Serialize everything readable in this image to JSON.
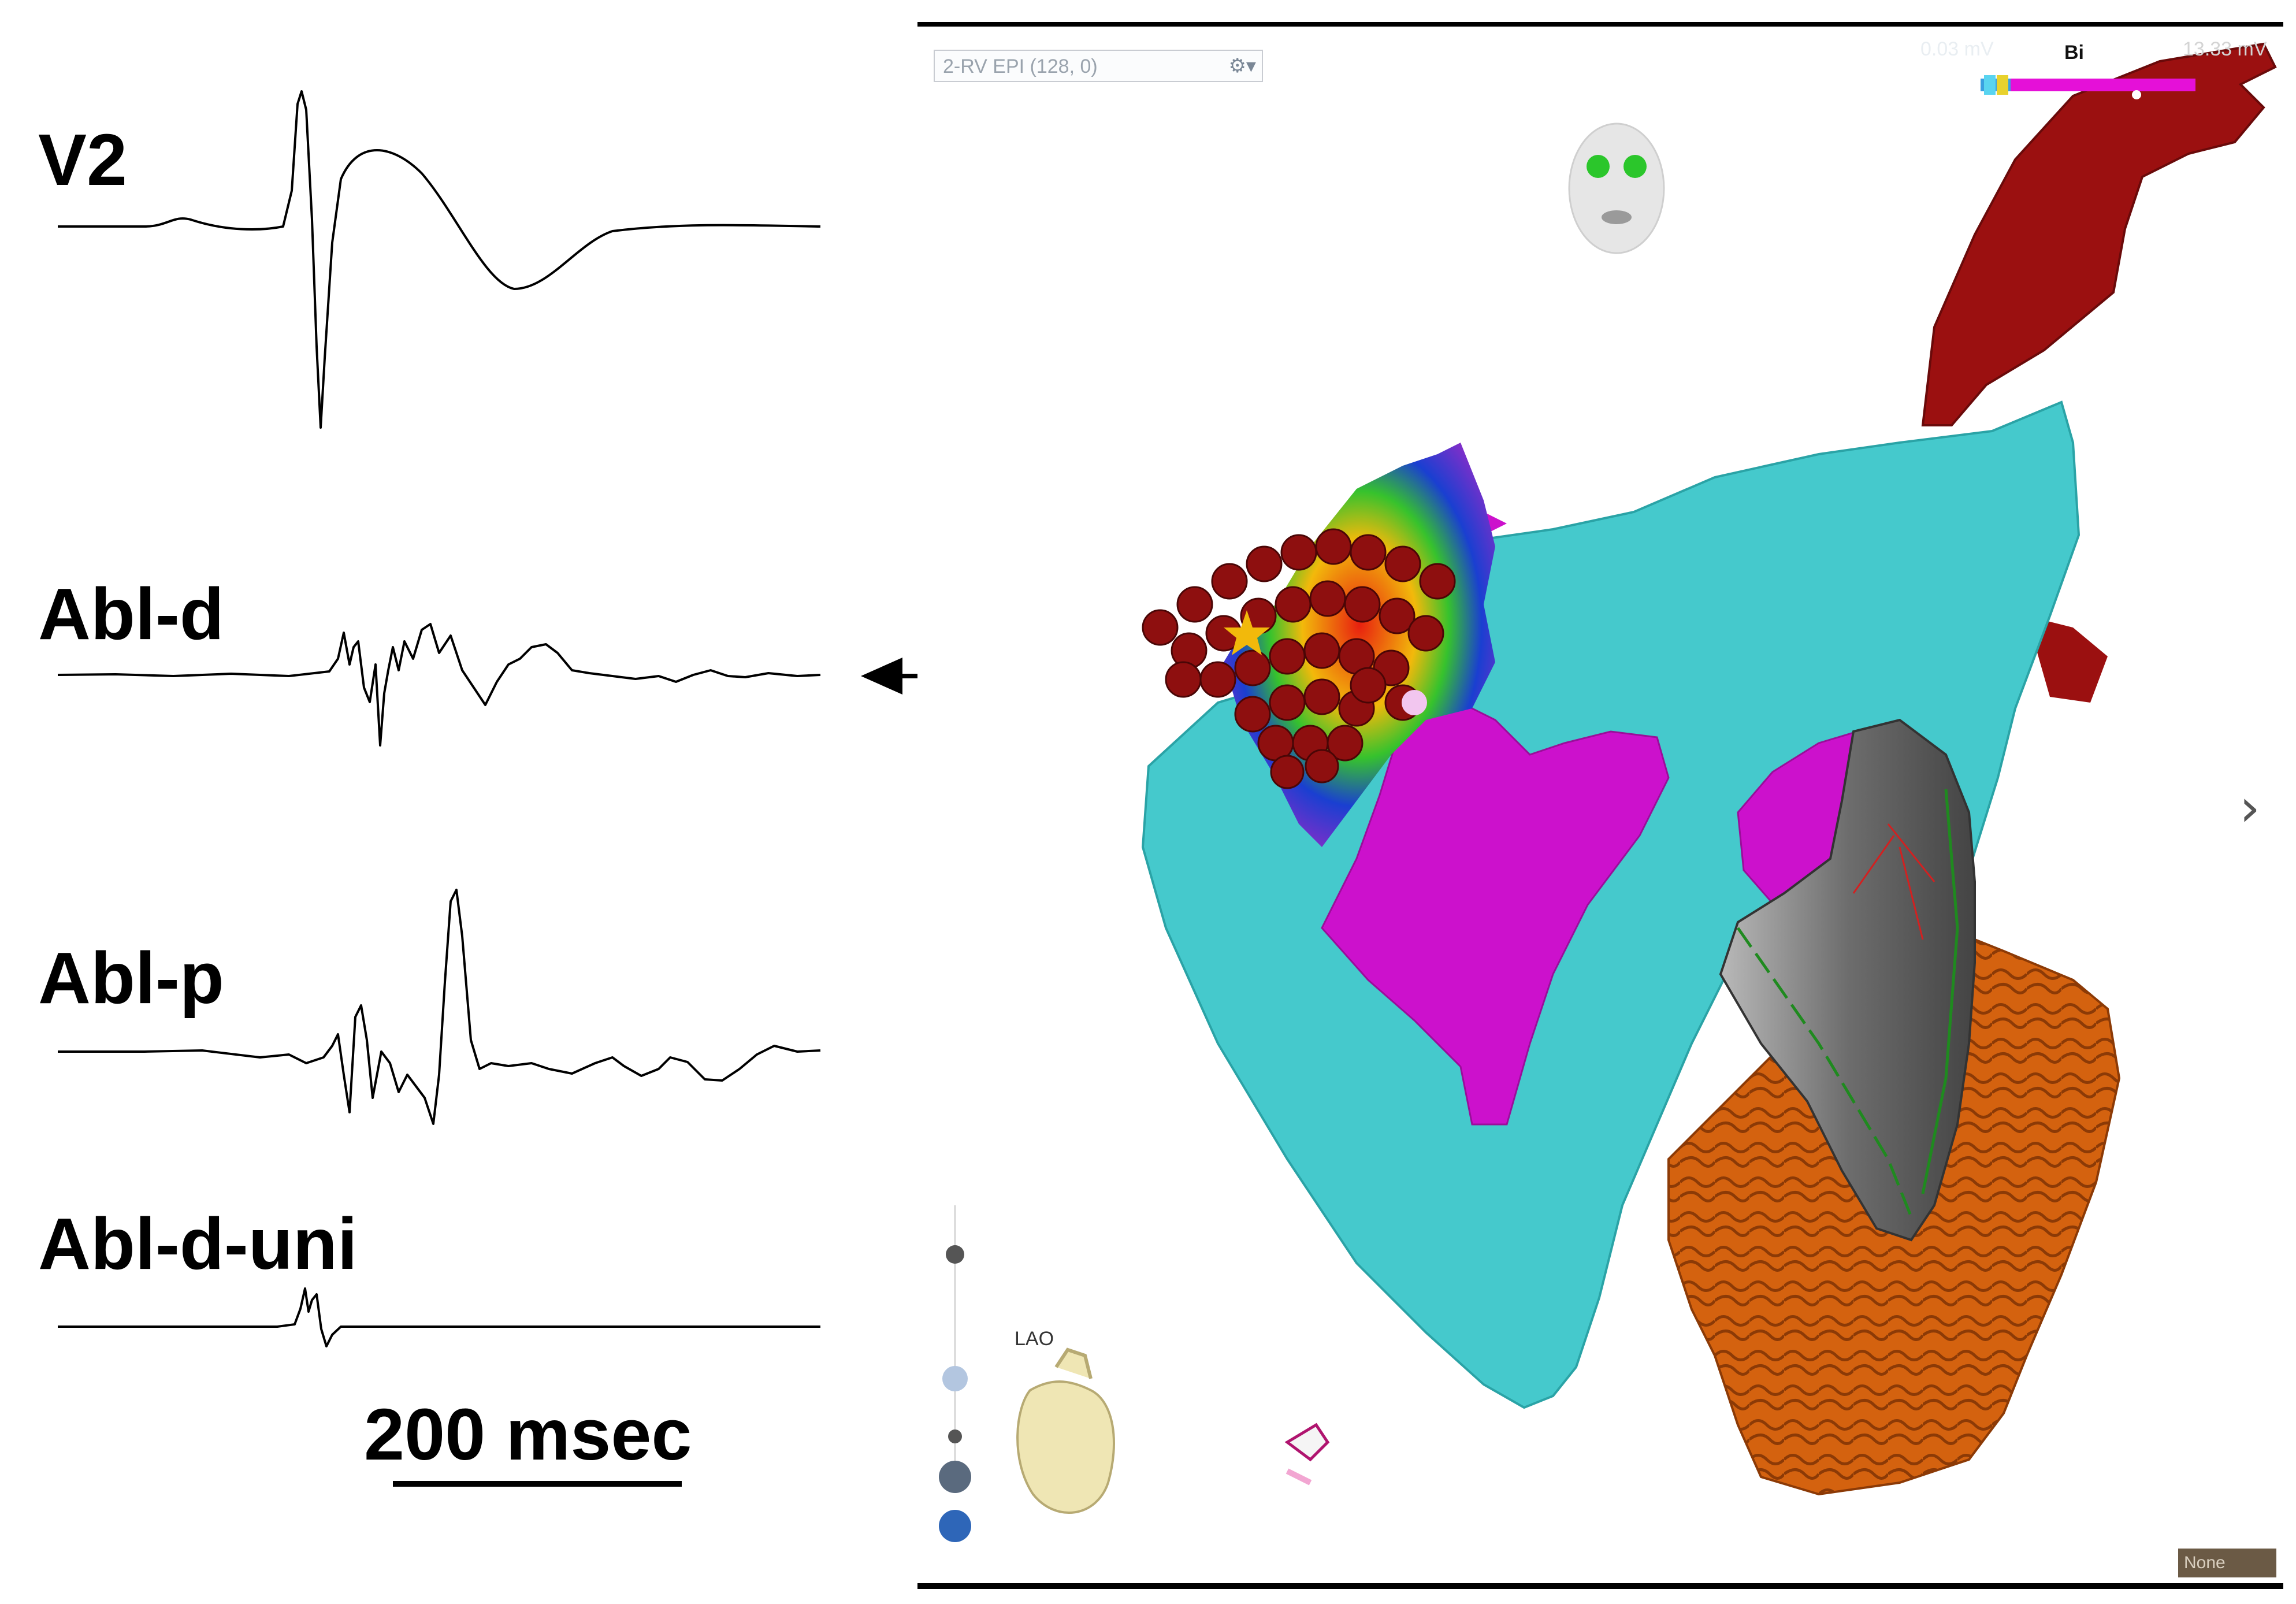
{
  "traces": {
    "v2": "V2",
    "abl_d": "Abl-d",
    "abl_p": "Abl-p",
    "abl_d_uni": "Abl-d-uni"
  },
  "scale_bar": "200 msec",
  "map": {
    "map_selector": "2-RV EPI (128, 0)",
    "scale_low": "0.03 mV",
    "scale_mode": "Bi",
    "scale_high": "13.33 mV",
    "scale_min": "0.53",
    "scale_max": "1.52",
    "orientation": "LAO",
    "overlay_select": "None",
    "colors": {
      "aorta": "#9b1010",
      "ventricle": "#45c9cc",
      "scar": "#cc11cc",
      "lv": "#d4620f",
      "catheter": "#8a8a8a",
      "ablation_points": "#8e0f0f"
    }
  }
}
